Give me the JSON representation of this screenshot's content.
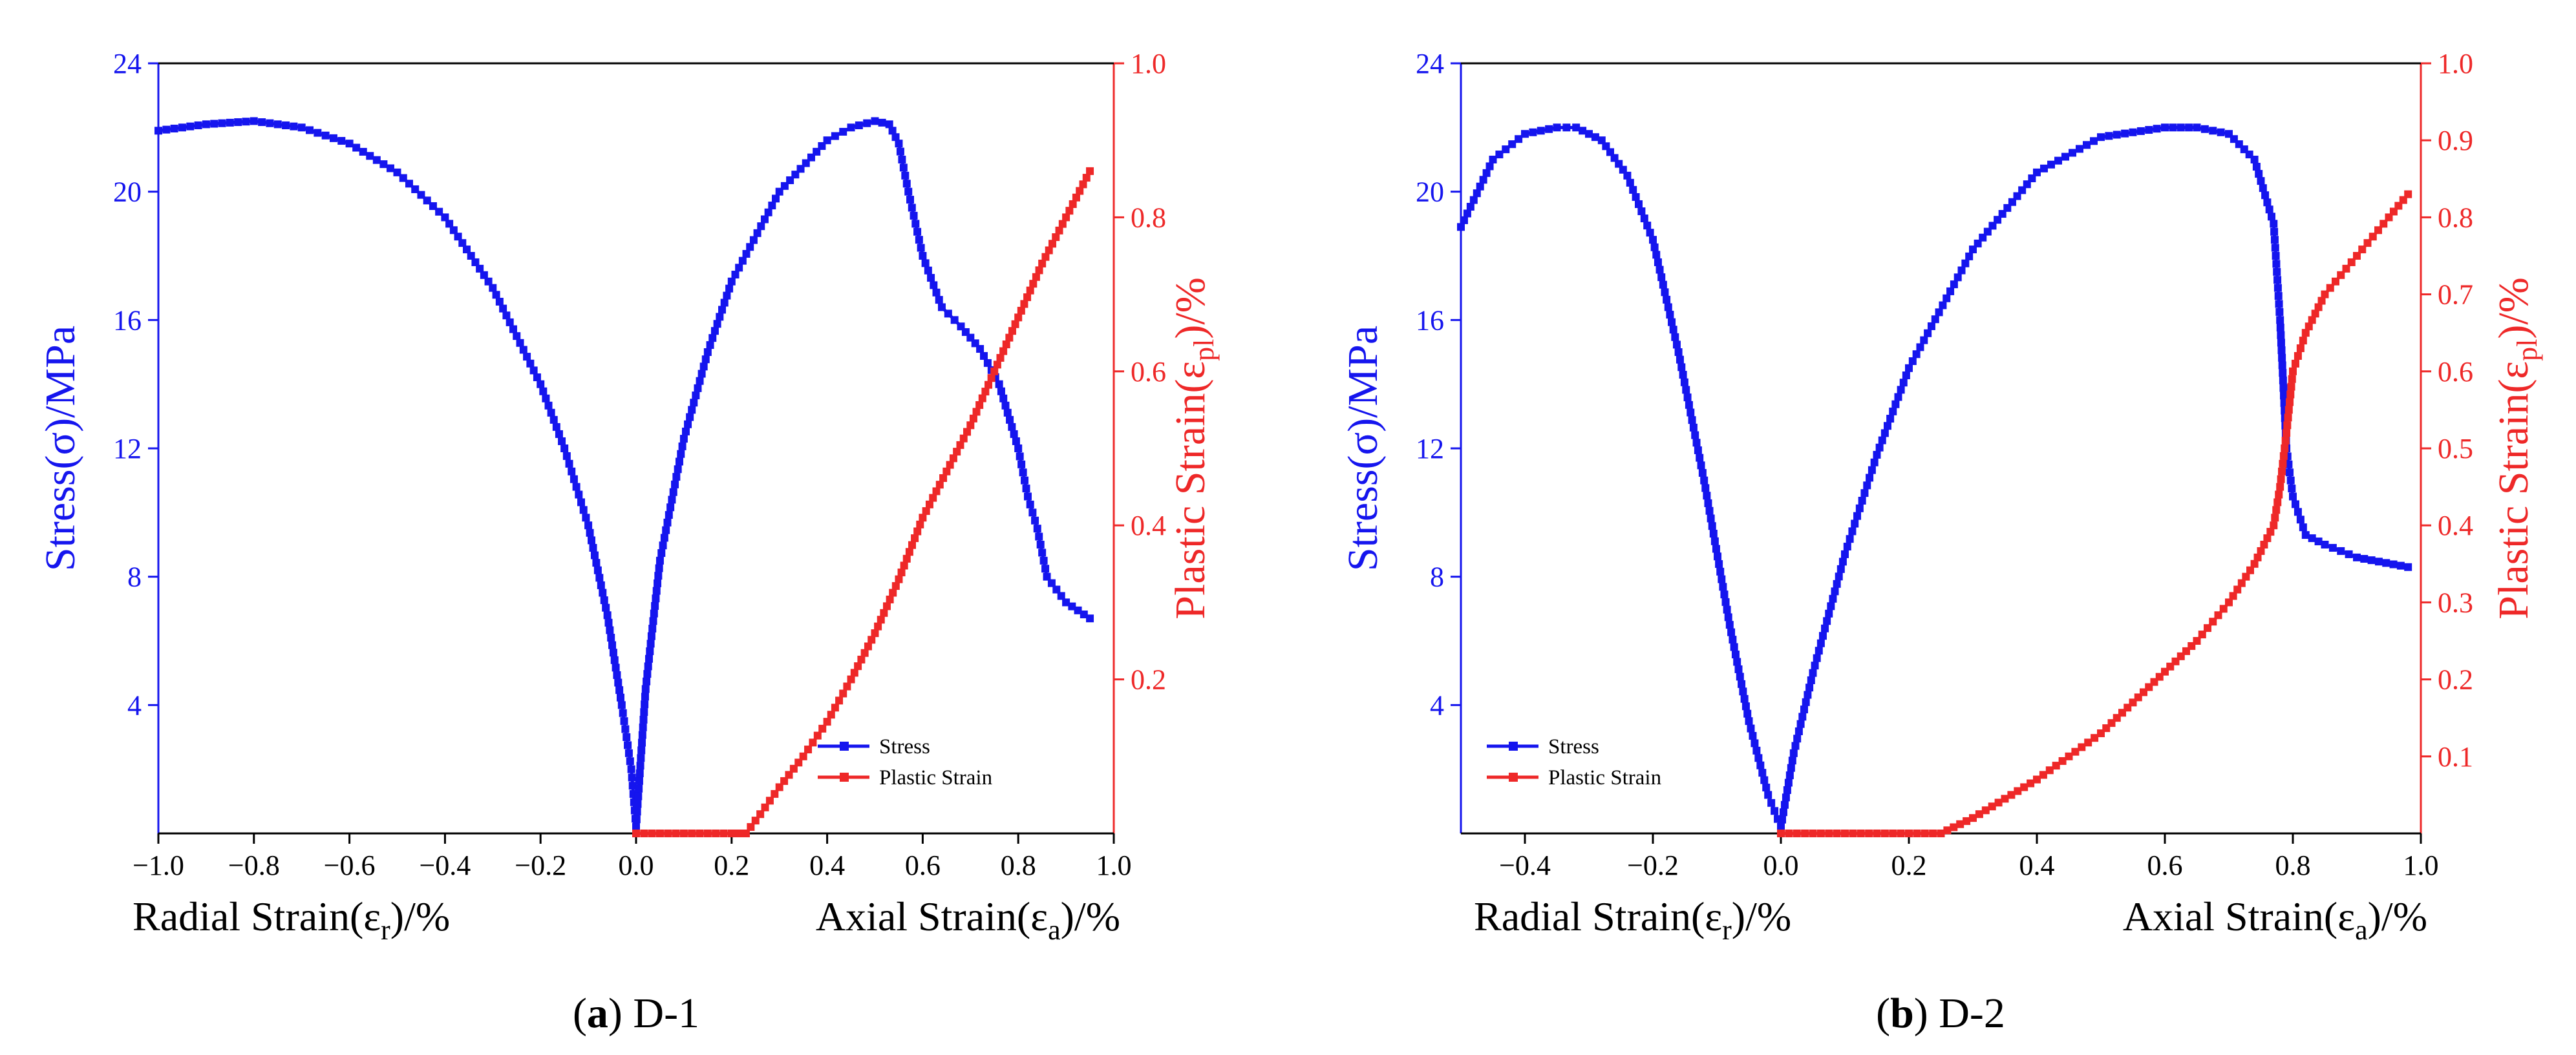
{
  "colors": {
    "stress": "#1515ee",
    "plastic": "#ee2828",
    "axis": "#000000"
  },
  "chart_data": [
    {
      "type": "line",
      "caption_letter": "a",
      "caption_name": "D-1",
      "left_ylabel": "Stress(σ)/MPa",
      "right_ylabel": "Plastic Strain(ε",
      "right_ylabel_sub": "pl",
      "right_ylabel_tail": ")/%",
      "xlabel_left": "Radial Strain(ε",
      "xlabel_left_sub": "r",
      "xlabel_left_tail": ")/%",
      "xlabel_right": "Axial Strain(ε",
      "xlabel_right_sub": "a",
      "xlabel_right_tail": ")/%",
      "xlim": [
        -1.0,
        1.0
      ],
      "xticks": [
        -1.0,
        -0.8,
        -0.6,
        -0.4,
        -0.2,
        0.0,
        0.2,
        0.4,
        0.6,
        0.8,
        1.0
      ],
      "xtick_labels": [
        "−1.0",
        "−0.8",
        "−0.6",
        "−0.4",
        "−0.2",
        "0.0",
        "0.2",
        "0.4",
        "0.6",
        "0.8",
        "1.0"
      ],
      "ylim_left": [
        0,
        24
      ],
      "yticks_left": [
        4,
        8,
        12,
        16,
        20,
        24
      ],
      "ytick_labels_left": [
        "4",
        "8",
        "12",
        "16",
        "20",
        "24"
      ],
      "ylim_right": [
        0,
        1.0
      ],
      "yticks_right": [
        0.2,
        0.4,
        0.6,
        0.8,
        1.0
      ],
      "ytick_labels_right": [
        "0.2",
        "0.4",
        "0.6",
        "0.8",
        "1.0"
      ],
      "legend": [
        "Stress",
        "Plastic Strain"
      ],
      "legend_position": "bottom-center-right",
      "series": [
        {
          "name": "Stress",
          "axis": "left",
          "x": [
            -1.0,
            -0.9,
            -0.8,
            -0.7,
            -0.6,
            -0.5,
            -0.4,
            -0.3,
            -0.2,
            -0.15,
            -0.1,
            -0.06,
            -0.03,
            -0.01,
            0.0,
            0.0,
            0.02,
            0.05,
            0.1,
            0.15,
            0.2,
            0.3,
            0.4,
            0.45,
            0.5,
            0.53,
            0.55,
            0.57,
            0.6,
            0.64,
            0.68,
            0.72,
            0.76,
            0.8,
            0.82,
            0.84,
            0.86,
            0.9,
            0.95
          ],
          "y": [
            21.9,
            22.1,
            22.2,
            22.0,
            21.5,
            20.6,
            19.2,
            17.0,
            14.0,
            12.0,
            9.6,
            6.8,
            4.0,
            2.0,
            0.2,
            0.2,
            4.5,
            8.5,
            12.3,
            15.0,
            17.2,
            20.0,
            21.6,
            22.0,
            22.2,
            22.1,
            21.5,
            20.0,
            18.0,
            16.4,
            15.8,
            15.1,
            14.0,
            12.0,
            10.5,
            9.5,
            8.0,
            7.2,
            6.7
          ]
        },
        {
          "name": "Plastic Strain",
          "axis": "right",
          "x": [
            0.0,
            0.1,
            0.2,
            0.23,
            0.26,
            0.3,
            0.35,
            0.4,
            0.45,
            0.5,
            0.55,
            0.6,
            0.65,
            0.7,
            0.75,
            0.8,
            0.85,
            0.9,
            0.95
          ],
          "y": [
            0.0,
            0.0,
            0.0,
            0.0,
            0.025,
            0.06,
            0.1,
            0.145,
            0.2,
            0.26,
            0.33,
            0.41,
            0.47,
            0.53,
            0.6,
            0.67,
            0.74,
            0.8,
            0.86
          ]
        }
      ]
    },
    {
      "type": "line",
      "caption_letter": "b",
      "caption_name": "D-2",
      "left_ylabel": "Stress(σ)/MPa",
      "right_ylabel": "Plastic Strain(ε",
      "right_ylabel_sub": "pl",
      "right_ylabel_tail": ")/%",
      "xlabel_left": "Radial Strain(ε",
      "xlabel_left_sub": "r",
      "xlabel_left_tail": ")/%",
      "xlabel_right": "Axial Strain(ε",
      "xlabel_right_sub": "a",
      "xlabel_right_tail": ")/%",
      "xlim": [
        -0.5,
        1.0
      ],
      "xticks": [
        -0.4,
        -0.2,
        0.0,
        0.2,
        0.4,
        0.6,
        0.8,
        1.0
      ],
      "xtick_labels": [
        "−0.4",
        "−0.2",
        "0.0",
        "0.2",
        "0.4",
        "0.6",
        "0.8",
        "1.0"
      ],
      "ylim_left": [
        0,
        24
      ],
      "yticks_left": [
        4,
        8,
        12,
        16,
        20,
        24
      ],
      "ytick_labels_left": [
        "4",
        "8",
        "12",
        "16",
        "20",
        "24"
      ],
      "ylim_right": [
        0,
        1.0
      ],
      "yticks_right": [
        0.1,
        0.2,
        0.3,
        0.4,
        0.5,
        0.6,
        0.7,
        0.8,
        0.9,
        1.0
      ],
      "ytick_labels_right": [
        "0.1",
        "0.2",
        "0.3",
        "0.4",
        "0.5",
        "0.6",
        "0.7",
        "0.8",
        "0.9",
        "1.0"
      ],
      "legend": [
        "Stress",
        "Plastic Strain"
      ],
      "legend_position": "bottom-left",
      "series": [
        {
          "name": "Stress",
          "axis": "left",
          "x": [
            -0.5,
            -0.45,
            -0.4,
            -0.35,
            -0.32,
            -0.28,
            -0.24,
            -0.2,
            -0.16,
            -0.12,
            -0.08,
            -0.05,
            -0.02,
            0.0,
            0.0,
            0.02,
            0.05,
            0.1,
            0.15,
            0.2,
            0.3,
            0.4,
            0.5,
            0.6,
            0.65,
            0.7,
            0.74,
            0.77,
            0.78,
            0.79,
            0.8,
            0.82,
            0.85,
            0.9,
            0.98
          ],
          "y": [
            18.9,
            21.0,
            21.8,
            22.0,
            22.0,
            21.6,
            20.5,
            18.5,
            15.0,
            11.0,
            6.5,
            3.5,
            1.2,
            0.2,
            0.2,
            2.5,
            5.0,
            8.7,
            11.8,
            14.5,
            18.2,
            20.6,
            21.7,
            22.0,
            22.0,
            21.8,
            21.0,
            19.0,
            16.0,
            12.0,
            10.5,
            9.3,
            9.0,
            8.6,
            8.3
          ]
        },
        {
          "name": "Plastic Strain",
          "axis": "right",
          "x": [
            0.0,
            0.1,
            0.2,
            0.25,
            0.3,
            0.35,
            0.4,
            0.45,
            0.5,
            0.55,
            0.6,
            0.65,
            0.7,
            0.74,
            0.77,
            0.78,
            0.79,
            0.8,
            0.82,
            0.85,
            0.9,
            0.95,
            0.98
          ],
          "y": [
            0.0,
            0.0,
            0.0,
            0.0,
            0.02,
            0.045,
            0.07,
            0.1,
            0.13,
            0.17,
            0.21,
            0.25,
            0.3,
            0.35,
            0.4,
            0.45,
            0.52,
            0.6,
            0.65,
            0.7,
            0.75,
            0.8,
            0.83
          ]
        }
      ]
    }
  ]
}
